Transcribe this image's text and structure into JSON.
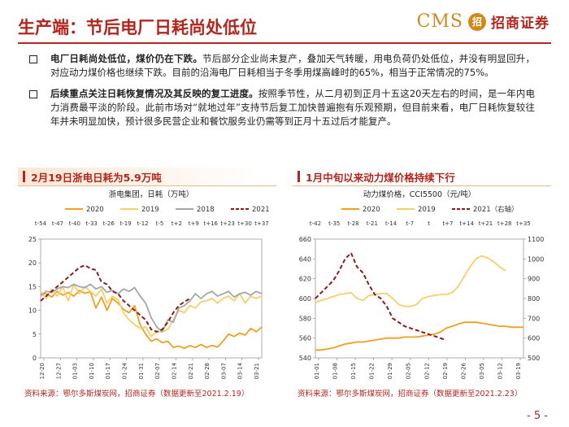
{
  "header": {
    "title": "生产端：节后电厂日耗尚处低位",
    "logo_cms": "CMS",
    "logo_mark": "招",
    "logo_cn": "招商证券"
  },
  "bullets": [
    {
      "bold": "电厂日耗尚处低位，煤价仍在下跌。",
      "text": "节后部分企业尚未复产，叠加天气转暖，用电负荷仍处低位，并没有明显回升，对应动力煤价格也继续下跌。目前的沿海电厂日耗相当于冬季用煤高峰时的65%，相当于正常情况的75%。"
    },
    {
      "bold": "后续重点关注日耗恢复情况及其反映的复工进度。",
      "text": "按照季节性，从二月初到正月十五这20天左右的时间，是一年内电力消费最平淡的阶段。此前市场对“就地过年”支持节后复工加快普遍抱有乐观预期，但目前来看，电厂日耗恢复较往年并未明显加快，预计很多民营企业和餐饮服务业仍需等到正月十五过后才能复产。"
    }
  ],
  "colors": {
    "c2020": "#f0a020",
    "c2019": "#f7cf6a",
    "c2018": "#a6a6a6",
    "c2021": "#8b1a1a"
  },
  "chart_data": [
    {
      "type": "line",
      "panel_title": "2月19日浙电日耗为5.9万吨",
      "title": "浙电集团，日耗（万吨）",
      "top_ticks": [
        "t-54",
        "t-47",
        "t-40",
        "t-33",
        "t-26",
        "t-19",
        "t-12",
        "t-5",
        "t+2",
        "t+9",
        "t+16",
        "t+23",
        "t+30",
        "t+37"
      ],
      "x_ticks": [
        "12-20",
        "12-27",
        "01-03",
        "01-10",
        "01-17",
        "01-24",
        "01-31",
        "02-07",
        "02-14",
        "02-21",
        "02-28",
        "03-07",
        "03-14",
        "03-21"
      ],
      "ylim": [
        0,
        25
      ],
      "y_ticks": [
        0,
        5,
        10,
        15,
        20,
        25
      ],
      "legend": [
        "2020",
        "2019",
        "2018",
        "2021"
      ],
      "series": [
        {
          "name": "2020",
          "values": [
            13.5,
            13.5,
            12.8,
            14.0,
            13.2,
            13.8,
            13.0,
            14.2,
            13.6,
            13.9,
            10.5,
            12.8,
            10.0,
            12.5,
            11.5,
            10.2,
            9.5,
            11.0,
            7.0,
            5.0,
            3.5,
            4.0,
            3.2,
            3.5,
            2.2,
            2.5,
            2.0,
            2.6,
            2.2,
            2.8,
            2.2,
            2.6,
            2.3,
            3.5,
            5.0,
            4.5,
            5.2,
            4.8,
            6.2,
            5.5,
            6.5
          ]
        },
        {
          "name": "2019",
          "values": [
            14.0,
            12.5,
            14.5,
            13.0,
            15.0,
            12.0,
            15.5,
            13.5,
            15.0,
            14.0,
            13.0,
            14.5,
            11.5,
            13.0,
            12.2,
            9.5,
            8.0,
            7.0,
            6.2,
            6.5,
            4.5,
            5.5,
            5.5,
            6.0,
            8.0,
            10.0,
            9.5,
            11.0,
            10.5,
            11.8,
            12.0,
            12.5,
            11.5,
            12.5,
            13.0,
            12.0,
            13.5,
            11.5,
            13.0,
            12.5,
            13.0
          ]
        },
        {
          "name": "2018",
          "values": [
            13.0,
            14.0,
            13.8,
            14.5,
            15.0,
            14.8,
            15.5,
            15.0,
            14.8,
            15.5,
            14.5,
            15.0,
            13.8,
            14.2,
            13.5,
            14.5,
            14.0,
            14.8,
            13.0,
            11.5,
            8.5,
            6.5,
            5.5,
            8.0,
            7.5,
            10.5,
            11.0,
            12.0,
            13.5,
            12.5,
            13.5,
            14.0,
            13.0,
            13.5,
            14.0,
            12.8,
            13.5,
            13.8,
            13.2,
            14.0,
            13.5
          ]
        },
        {
          "name": "2021",
          "values": [
            12.0,
            13.0,
            14.0,
            15.0,
            16.0,
            17.0,
            18.0,
            19.0,
            19.5,
            18.8,
            18.5,
            16.0,
            15.5,
            14.0,
            13.5,
            12.0,
            11.0,
            10.0,
            9.0,
            8.0,
            6.0,
            5.5,
            6.0,
            7.5,
            9.5,
            11.0,
            11.8,
            12.5,
            null,
            null,
            null,
            null,
            null,
            null,
            null,
            null,
            null,
            null,
            null,
            null,
            null
          ]
        }
      ],
      "source": "资料来源：鄂尔多斯煤炭网，招商证券（数据更新至2021.2.19）"
    },
    {
      "type": "line",
      "panel_title": "1月中旬以来动力煤价格持续下行",
      "title": "动力煤价格，CCI5500（元/吨）",
      "top_ticks": [
        "t-42",
        "t-35",
        "t-28",
        "t-21",
        "t-14",
        "t-7",
        "t",
        "t+7",
        "t+14",
        "t+21",
        "t+28",
        "t+35"
      ],
      "x_ticks": [
        "01-01",
        "01-08",
        "01-15",
        "01-22",
        "01-29",
        "02-05",
        "02-12",
        "02-19",
        "02-26",
        "03-05",
        "03-12",
        "03-19"
      ],
      "ylim": [
        540,
        660
      ],
      "y_ticks": [
        540,
        560,
        580,
        600,
        620,
        640,
        660
      ],
      "ylim_right": [
        500,
        1100
      ],
      "y_ticks_right": [
        500,
        600,
        700,
        800,
        900,
        1000,
        1100
      ],
      "legend": [
        "2020",
        "2019",
        "2021（右轴）"
      ],
      "series": [
        {
          "name": "2020",
          "values": [
            548,
            548,
            549,
            550,
            552,
            554,
            555,
            556,
            556,
            557,
            558,
            559,
            560,
            560,
            560,
            561,
            561,
            561,
            562,
            563,
            564,
            566,
            570,
            572,
            574,
            576,
            576,
            576,
            575,
            574,
            573,
            572,
            572,
            571,
            571,
            571
          ]
        },
        {
          "name": "2019",
          "values": [
            596,
            598,
            600,
            602,
            604,
            605,
            606,
            600,
            598,
            603,
            604,
            605,
            605,
            600,
            594,
            592,
            592,
            594,
            600,
            602,
            603,
            604,
            604,
            606,
            612,
            622,
            632,
            640,
            643,
            641,
            637,
            632,
            628,
            null,
            null,
            null
          ]
        },
        {
          "name": "2021（右轴）",
          "axis": "right",
          "values": [
            800,
            830,
            860,
            890,
            940,
            1000,
            1030,
            960,
            930,
            870,
            820,
            800,
            760,
            700,
            680,
            660,
            650,
            640,
            630,
            620,
            610,
            600,
            590,
            null,
            null,
            null,
            null,
            null,
            null,
            null,
            null,
            null,
            null,
            null,
            null,
            null
          ]
        }
      ],
      "source": "资料来源：鄂尔多斯煤炭网，招商证券（数据更新至2021.2.23）"
    }
  ],
  "page_number": "- 5 -"
}
